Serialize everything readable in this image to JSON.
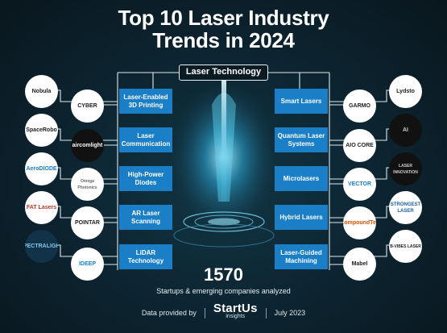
{
  "title_line1": "Top 10 Laser Industry",
  "title_line2": "Trends in 2024",
  "category": "Laser Technology",
  "trends_left": [
    {
      "label": "Laser-Enabled 3D Printing"
    },
    {
      "label": "Laser Communication"
    },
    {
      "label": "High-Power Diodes"
    },
    {
      "label": "AR Laser Scanning"
    },
    {
      "label": "LiDAR Technology"
    }
  ],
  "trends_right": [
    {
      "label": "Smart Lasers"
    },
    {
      "label": "Quantum Laser Systems"
    },
    {
      "label": "Microlasers"
    },
    {
      "label": "Hybrid Lasers"
    },
    {
      "label": "Laser-Guided Machining"
    }
  ],
  "logos_left_outer": [
    "Nobula",
    "SpaceRobo",
    "AeroDIODE",
    "FAT Lasers",
    "SPECTRALIGHT"
  ],
  "logos_left_inner": [
    "CYBER",
    "aircomlight",
    "Omega Photonics",
    "POINTAR",
    "IDEEP"
  ],
  "logos_right_inner": [
    "GARMO",
    "AIO CORE",
    "VECTOR",
    "CompoundTek",
    "Mabel"
  ],
  "logos_right_outer": [
    "Lydsto",
    "AI",
    "LASER INNOVATION",
    "STRONGEST LASER",
    "B-VIBES LASER"
  ],
  "count": "1570",
  "count_caption": "Startups & emerging companies analyzed",
  "footer": {
    "provided": "Data provided by",
    "brand": "StartUs",
    "brand_tag": "insights",
    "date": "July 2023"
  },
  "colors": {
    "trend_box": "#1a7fc6",
    "background": "#0d2633",
    "accent_glow": "#2fb6e8"
  }
}
